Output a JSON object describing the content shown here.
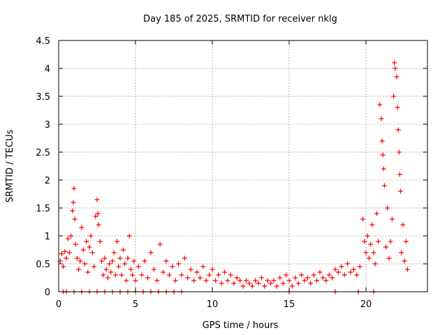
{
  "chart_data": {
    "type": "scatter",
    "title": "Day 185 of 2025, SRMTID for receiver nklg",
    "xlabel": "GPS time / hours",
    "ylabel": "SRMTID / TECUs",
    "xlim": [
      0,
      24
    ],
    "ylim": [
      0,
      4.5
    ],
    "xticks": [
      "0",
      "5",
      "10",
      "15",
      "20"
    ],
    "yticks": [
      "0",
      "0.5",
      "1",
      "1.5",
      "2",
      "2.5",
      "3",
      "3.5",
      "4",
      "4.5"
    ],
    "grid": true,
    "marker": "plus",
    "color": "#ff0000",
    "series": [
      {
        "name": "SRMTID",
        "points": [
          [
            0.1,
            0.55
          ],
          [
            0.2,
            0.68
          ],
          [
            0.3,
            0.45
          ],
          [
            0.4,
            0.72
          ],
          [
            0.5,
            0.6
          ],
          [
            0.6,
            0.95
          ],
          [
            0.7,
            0.7
          ],
          [
            0.8,
            1.0
          ],
          [
            0.9,
            1.45
          ],
          [
            0.95,
            1.6
          ],
          [
            1.0,
            1.85
          ],
          [
            1.05,
            1.3
          ],
          [
            1.1,
            0.85
          ],
          [
            1.2,
            0.6
          ],
          [
            1.3,
            0.4
          ],
          [
            1.4,
            0.55
          ],
          [
            1.5,
            1.15
          ],
          [
            1.6,
            0.75
          ],
          [
            1.7,
            0.5
          ],
          [
            1.8,
            0.9
          ],
          [
            1.9,
            0.35
          ],
          [
            2.0,
            0.8
          ],
          [
            2.1,
            1.0
          ],
          [
            2.2,
            0.7
          ],
          [
            2.3,
            0.45
          ],
          [
            2.4,
            1.35
          ],
          [
            2.5,
            1.65
          ],
          [
            2.55,
            1.4
          ],
          [
            2.6,
            1.2
          ],
          [
            2.7,
            0.9
          ],
          [
            2.8,
            0.55
          ],
          [
            2.9,
            0.3
          ],
          [
            3.0,
            0.6
          ],
          [
            3.1,
            0.4
          ],
          [
            3.2,
            0.25
          ],
          [
            3.3,
            0.5
          ],
          [
            3.4,
            0.35
          ],
          [
            3.5,
            0.55
          ],
          [
            3.6,
            0.7
          ],
          [
            3.7,
            0.3
          ],
          [
            3.8,
            0.9
          ],
          [
            3.9,
            0.45
          ],
          [
            4.0,
            0.6
          ],
          [
            4.1,
            0.3
          ],
          [
            4.2,
            0.75
          ],
          [
            4.3,
            0.5
          ],
          [
            4.4,
            0.2
          ],
          [
            4.5,
            0.6
          ],
          [
            4.6,
            1.0
          ],
          [
            4.7,
            0.4
          ],
          [
            4.8,
            0.3
          ],
          [
            4.9,
            0.55
          ],
          [
            5.0,
            0.2
          ],
          [
            5.2,
            0.45
          ],
          [
            5.4,
            0.3
          ],
          [
            5.6,
            0.55
          ],
          [
            5.8,
            0.25
          ],
          [
            6.0,
            0.7
          ],
          [
            6.2,
            0.4
          ],
          [
            6.4,
            0.2
          ],
          [
            6.6,
            0.85
          ],
          [
            6.8,
            0.35
          ],
          [
            7.0,
            0.55
          ],
          [
            7.2,
            0.3
          ],
          [
            7.4,
            0.45
          ],
          [
            7.6,
            0.2
          ],
          [
            7.8,
            0.5
          ],
          [
            8.0,
            0.3
          ],
          [
            8.2,
            0.6
          ],
          [
            8.4,
            0.25
          ],
          [
            8.6,
            0.4
          ],
          [
            8.8,
            0.2
          ],
          [
            9.0,
            0.35
          ],
          [
            9.2,
            0.25
          ],
          [
            9.4,
            0.45
          ],
          [
            9.6,
            0.2
          ],
          [
            9.8,
            0.3
          ],
          [
            10.0,
            0.4
          ],
          [
            10.2,
            0.2
          ],
          [
            10.4,
            0.3
          ],
          [
            10.6,
            0.15
          ],
          [
            10.8,
            0.35
          ],
          [
            11.0,
            0.2
          ],
          [
            11.2,
            0.3
          ],
          [
            11.4,
            0.15
          ],
          [
            11.6,
            0.25
          ],
          [
            11.8,
            0.2
          ],
          [
            12.0,
            0.1
          ],
          [
            12.2,
            0.2
          ],
          [
            12.4,
            0.15
          ],
          [
            12.6,
            0.1
          ],
          [
            12.8,
            0.2
          ],
          [
            13.0,
            0.15
          ],
          [
            13.2,
            0.25
          ],
          [
            13.4,
            0.1
          ],
          [
            13.6,
            0.2
          ],
          [
            13.8,
            0.15
          ],
          [
            14.0,
            0.2
          ],
          [
            14.2,
            0.1
          ],
          [
            14.4,
            0.25
          ],
          [
            14.6,
            0.15
          ],
          [
            14.8,
            0.3
          ],
          [
            15.0,
            0.2
          ],
          [
            15.2,
            0.1
          ],
          [
            15.4,
            0.25
          ],
          [
            15.6,
            0.15
          ],
          [
            15.8,
            0.3
          ],
          [
            16.0,
            0.2
          ],
          [
            16.2,
            0.25
          ],
          [
            16.4,
            0.15
          ],
          [
            16.6,
            0.3
          ],
          [
            16.8,
            0.2
          ],
          [
            17.0,
            0.35
          ],
          [
            17.2,
            0.25
          ],
          [
            17.4,
            0.2
          ],
          [
            17.6,
            0.3
          ],
          [
            17.8,
            0.25
          ],
          [
            18.0,
            0.4
          ],
          [
            18.2,
            0.35
          ],
          [
            18.4,
            0.45
          ],
          [
            18.6,
            0.3
          ],
          [
            18.8,
            0.5
          ],
          [
            19.0,
            0.35
          ],
          [
            19.2,
            0.4
          ],
          [
            19.4,
            0.3
          ],
          [
            19.6,
            0.45
          ],
          [
            19.8,
            1.3
          ],
          [
            19.9,
            0.9
          ],
          [
            20.0,
            0.7
          ],
          [
            20.1,
            1.0
          ],
          [
            20.2,
            0.6
          ],
          [
            20.3,
            0.85
          ],
          [
            20.4,
            1.2
          ],
          [
            20.5,
            0.7
          ],
          [
            20.6,
            0.5
          ],
          [
            20.7,
            1.4
          ],
          [
            20.8,
            0.9
          ],
          [
            20.9,
            3.35
          ],
          [
            21.0,
            3.1
          ],
          [
            21.05,
            2.7
          ],
          [
            21.1,
            2.45
          ],
          [
            21.15,
            2.2
          ],
          [
            21.2,
            1.9
          ],
          [
            21.3,
            0.8
          ],
          [
            21.4,
            1.5
          ],
          [
            21.5,
            0.6
          ],
          [
            21.6,
            0.9
          ],
          [
            21.7,
            1.3
          ],
          [
            21.8,
            3.5
          ],
          [
            21.85,
            4.1
          ],
          [
            21.9,
            4.0
          ],
          [
            22.0,
            3.85
          ],
          [
            22.05,
            3.3
          ],
          [
            22.1,
            2.9
          ],
          [
            22.15,
            2.5
          ],
          [
            22.2,
            2.1
          ],
          [
            22.25,
            1.8
          ],
          [
            22.3,
            0.7
          ],
          [
            22.4,
            1.2
          ],
          [
            22.5,
            0.55
          ],
          [
            22.6,
            0.9
          ],
          [
            22.7,
            0.4
          ]
        ],
        "zero_points": [
          0.3,
          0.5,
          1.0,
          1.5,
          2.0,
          2.5,
          3.0,
          3.5,
          4.0,
          4.5,
          5.0,
          5.5,
          6.0,
          6.5,
          7.0,
          7.5,
          8.0,
          15.0,
          18.0,
          19.5,
          20.5
        ]
      }
    ]
  }
}
